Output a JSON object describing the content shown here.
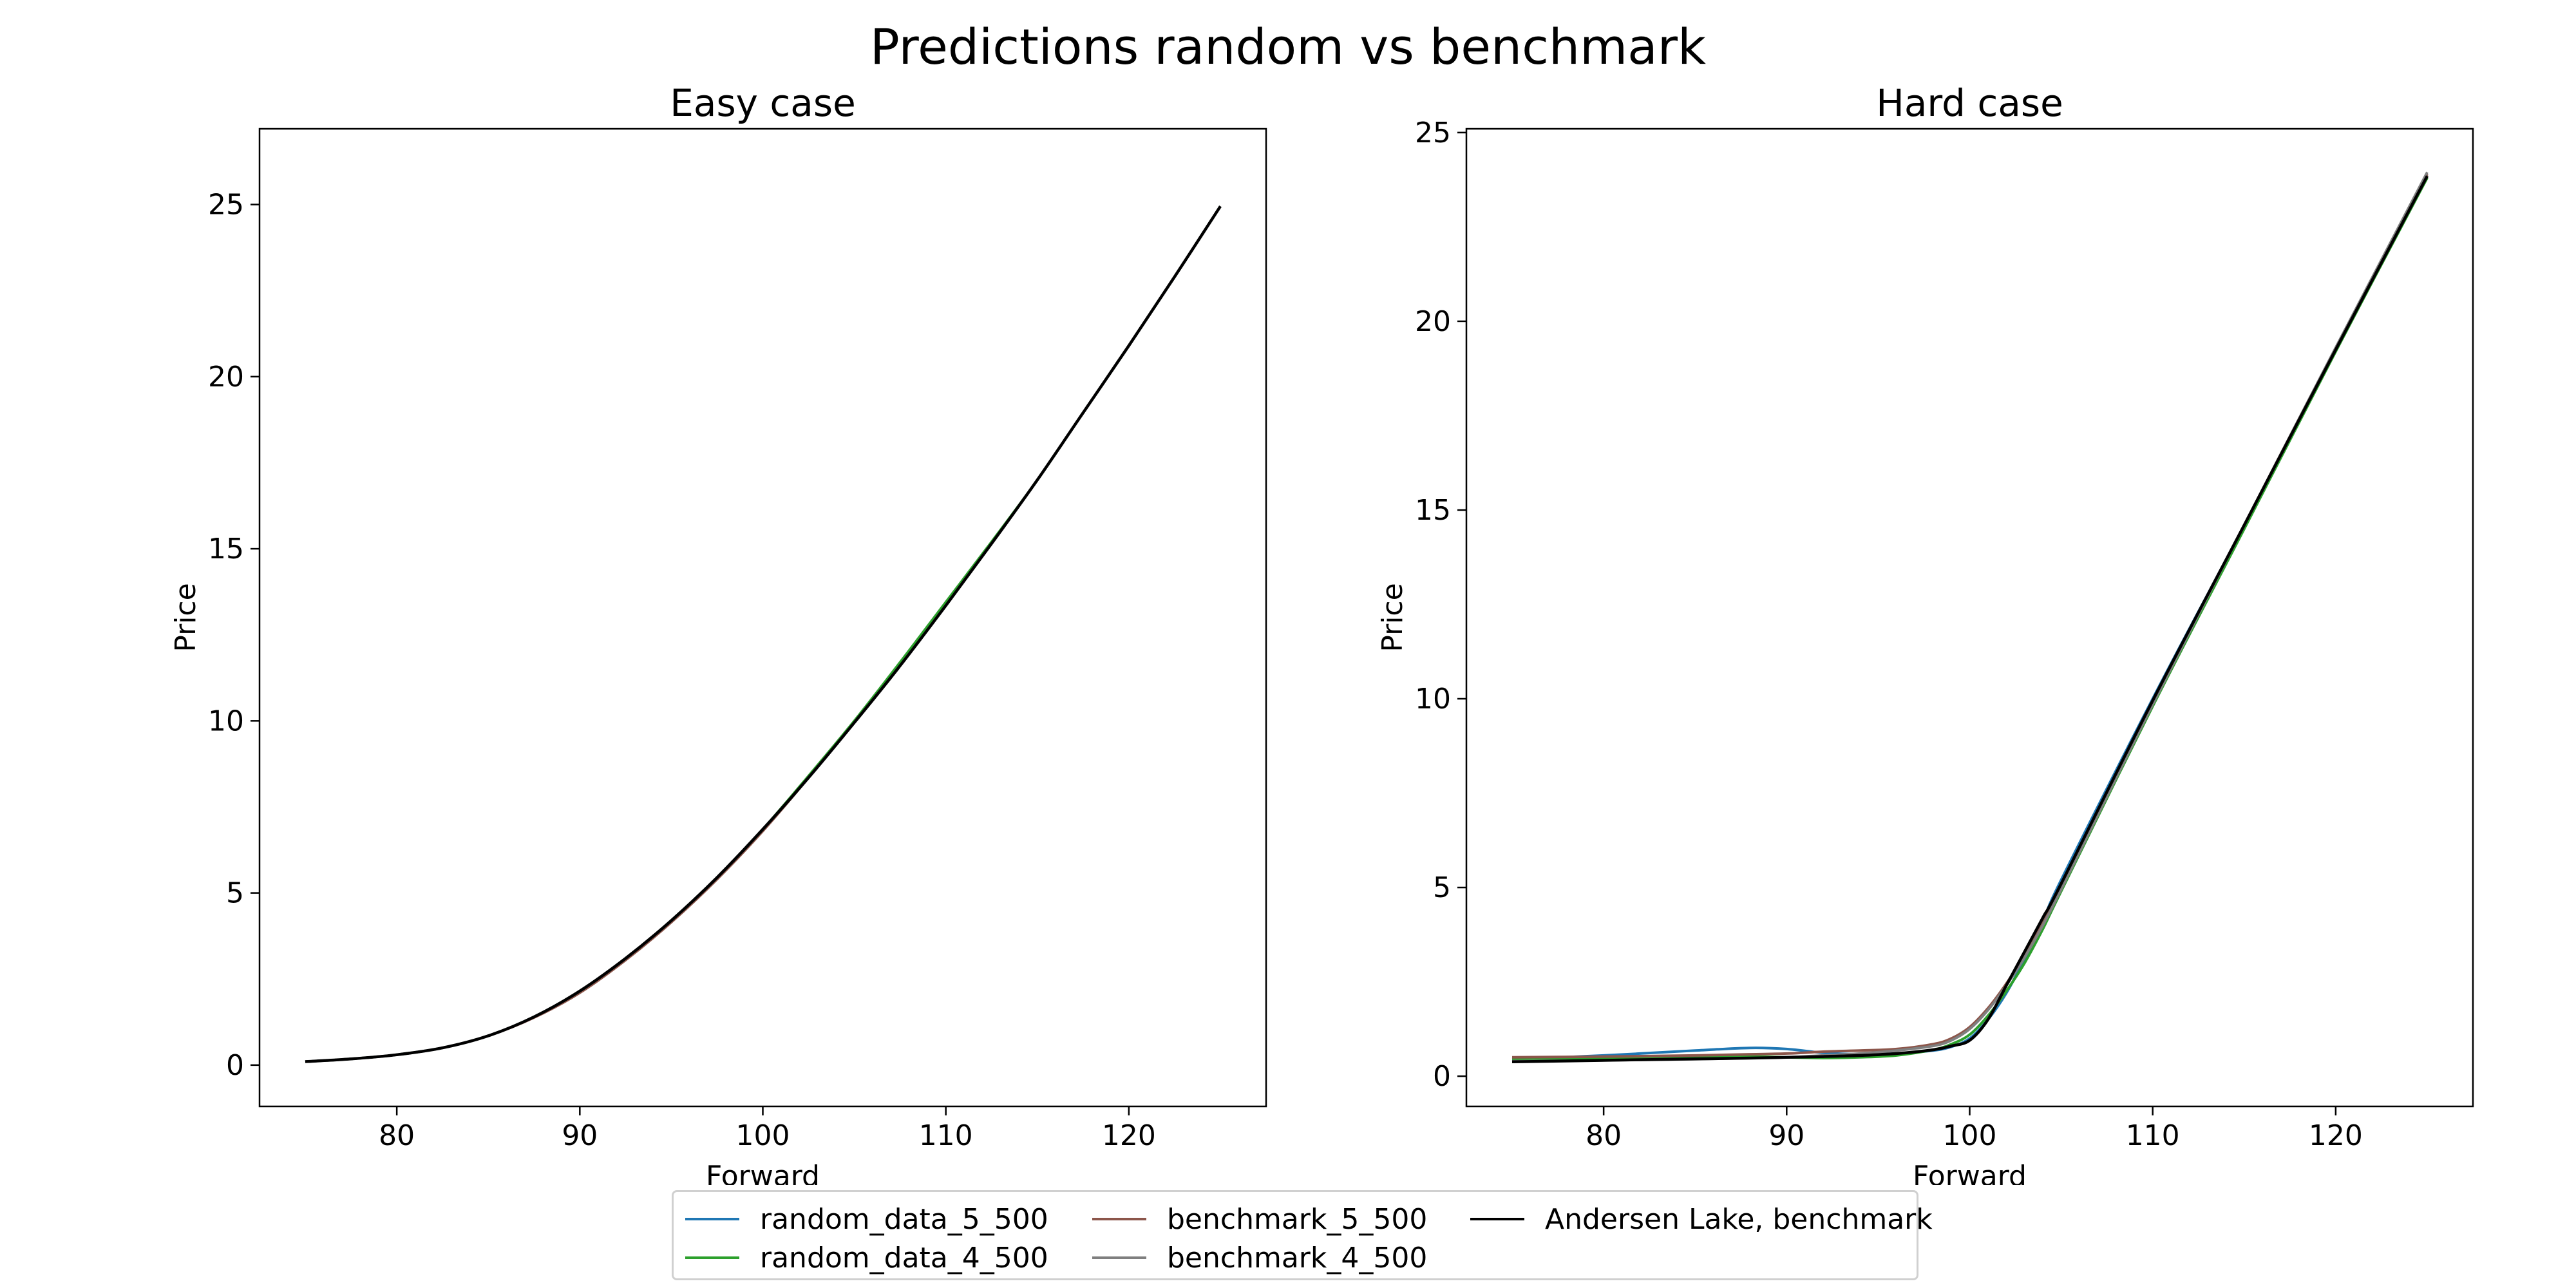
{
  "figure": {
    "suptitle": "Predictions random vs benchmark"
  },
  "chart_data": [
    {
      "type": "line",
      "title": "Easy case",
      "xlabel": "Forward",
      "ylabel": "Price",
      "xlim": [
        72.5,
        127.5
      ],
      "ylim": [
        -1.2,
        27.2
      ],
      "xticks": [
        80,
        90,
        100,
        110,
        120
      ],
      "yticks": [
        0,
        5,
        10,
        15,
        20,
        25
      ],
      "grid": false,
      "x": [
        75,
        77.5,
        80,
        82.5,
        85,
        87.5,
        90,
        92.5,
        95,
        97.5,
        100,
        102.5,
        105,
        107.5,
        110,
        112.5,
        115,
        117.5,
        120,
        122.5,
        125
      ],
      "series": [
        {
          "name": "random_data_5_500",
          "color": "#1f77b4",
          "values": [
            0.1,
            0.18,
            0.3,
            0.5,
            0.85,
            1.4,
            2.15,
            3.1,
            4.2,
            5.45,
            6.85,
            8.35,
            9.95,
            11.6,
            13.35,
            15.15,
            17.0,
            18.95,
            20.9,
            22.9,
            24.95
          ]
        },
        {
          "name": "random_data_4_500",
          "color": "#2ca02c",
          "values": [
            0.1,
            0.18,
            0.3,
            0.5,
            0.85,
            1.4,
            2.15,
            3.1,
            4.2,
            5.45,
            6.85,
            8.4,
            10.0,
            11.7,
            13.45,
            15.2,
            17.0,
            18.95,
            20.9,
            22.9,
            24.95
          ]
        },
        {
          "name": "benchmark_5_500",
          "color": "#8c564b",
          "values": [
            0.1,
            0.18,
            0.3,
            0.5,
            0.85,
            1.38,
            2.1,
            3.05,
            4.15,
            5.4,
            6.8,
            8.35,
            9.95,
            11.6,
            13.35,
            15.15,
            17.0,
            18.95,
            20.9,
            22.9,
            24.95
          ]
        },
        {
          "name": "benchmark_4_500",
          "color": "#7f7f7f",
          "values": [
            0.1,
            0.18,
            0.3,
            0.5,
            0.85,
            1.4,
            2.15,
            3.1,
            4.2,
            5.45,
            6.85,
            8.35,
            9.95,
            11.6,
            13.35,
            15.15,
            17.0,
            18.95,
            20.9,
            22.9,
            24.95
          ]
        },
        {
          "name": "Andersen Lake, benchmark",
          "color": "#000000",
          "values": [
            0.1,
            0.18,
            0.3,
            0.5,
            0.85,
            1.4,
            2.15,
            3.1,
            4.2,
            5.45,
            6.85,
            8.35,
            9.95,
            11.6,
            13.35,
            15.15,
            17.0,
            18.95,
            20.9,
            22.9,
            24.95
          ]
        }
      ]
    },
    {
      "type": "line",
      "title": "Hard case",
      "xlabel": "Forward",
      "ylabel": "Price",
      "xlim": [
        72.5,
        127.5
      ],
      "ylim": [
        -0.8,
        25.1
      ],
      "xticks": [
        80,
        90,
        100,
        110,
        120
      ],
      "yticks": [
        0,
        5,
        10,
        15,
        20,
        25
      ],
      "grid": false,
      "x": [
        75,
        80,
        85,
        88,
        90,
        92,
        94,
        96,
        98,
        99,
        100,
        101,
        102,
        103,
        104,
        105,
        110,
        115,
        120,
        125
      ],
      "series": [
        {
          "name": "random_data_5_500",
          "color": "#1f77b4",
          "values": [
            0.45,
            0.55,
            0.68,
            0.75,
            0.72,
            0.62,
            0.58,
            0.6,
            0.68,
            0.78,
            1.0,
            1.5,
            2.2,
            3.1,
            4.1,
            5.2,
            10.0,
            14.6,
            19.3,
            23.9
          ]
        },
        {
          "name": "random_data_4_500",
          "color": "#2ca02c",
          "values": [
            0.45,
            0.47,
            0.5,
            0.52,
            0.5,
            0.48,
            0.5,
            0.55,
            0.7,
            0.85,
            1.1,
            1.6,
            2.25,
            3.0,
            3.9,
            4.9,
            9.8,
            14.5,
            19.2,
            23.8
          ]
        },
        {
          "name": "benchmark_5_500",
          "color": "#8c564b",
          "values": [
            0.5,
            0.52,
            0.55,
            0.58,
            0.6,
            0.65,
            0.68,
            0.72,
            0.85,
            1.0,
            1.3,
            1.8,
            2.45,
            3.2,
            4.05,
            5.0,
            9.9,
            14.6,
            19.3,
            23.9
          ]
        },
        {
          "name": "benchmark_4_500",
          "color": "#7f7f7f",
          "values": [
            0.4,
            0.42,
            0.45,
            0.48,
            0.5,
            0.55,
            0.6,
            0.68,
            0.8,
            0.95,
            1.25,
            1.75,
            2.4,
            3.15,
            4.0,
            4.95,
            9.85,
            14.6,
            19.3,
            23.95
          ]
        },
        {
          "name": "Andersen Lake, benchmark",
          "color": "#000000",
          "values": [
            0.38,
            0.42,
            0.46,
            0.48,
            0.5,
            0.52,
            0.55,
            0.6,
            0.7,
            0.8,
            0.95,
            1.5,
            2.4,
            3.3,
            4.2,
            5.1,
            9.95,
            14.6,
            19.25,
            23.85
          ]
        }
      ]
    }
  ],
  "legend": {
    "placement": "lower-center",
    "items": [
      {
        "label": "random_data_5_500",
        "color": "#1f77b4"
      },
      {
        "label": "random_data_4_500",
        "color": "#2ca02c"
      },
      {
        "label": "benchmark_5_500",
        "color": "#8c564b"
      },
      {
        "label": "benchmark_4_500",
        "color": "#7f7f7f"
      },
      {
        "label": "Andersen Lake, benchmark",
        "color": "#000000"
      }
    ]
  }
}
